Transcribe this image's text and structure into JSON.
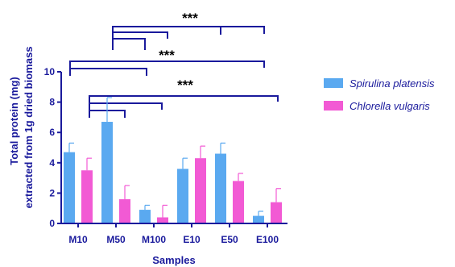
{
  "colors": {
    "axis": "#1a1a9c",
    "text": "#1a1a9c",
    "spirulina": "#5aa9f0",
    "chlorella": "#f25ad4",
    "bracket": "#1a1a9c",
    "stars": "#000000"
  },
  "chart_data": {
    "type": "bar",
    "xlabel": "Samples",
    "ylabel_line1": "Total protein (mg)",
    "ylabel_line2": "extracted from 1g dried biomass",
    "ylim": [
      0,
      10
    ],
    "yticks": [
      0,
      2,
      4,
      6,
      8,
      10
    ],
    "categories": [
      "M10",
      "M50",
      "M100",
      "E10",
      "E50",
      "E100"
    ],
    "legend_placement": "right",
    "grid": false,
    "series": [
      {
        "name": "Spirulina platensis",
        "values": [
          4.7,
          6.7,
          0.9,
          3.6,
          4.6,
          0.5
        ],
        "errors": [
          0.6,
          1.6,
          0.3,
          0.7,
          0.7,
          0.3
        ]
      },
      {
        "name": "Chlorella vulgaris",
        "values": [
          3.5,
          1.6,
          0.4,
          4.3,
          2.8,
          1.4
        ],
        "errors": [
          0.8,
          0.9,
          0.8,
          0.8,
          0.5,
          0.9
        ]
      }
    ],
    "annotations": [
      {
        "text": "***",
        "label": "stars-top"
      },
      {
        "text": "***",
        "label": "stars-middle"
      },
      {
        "text": "***",
        "label": "stars-lower"
      }
    ]
  }
}
